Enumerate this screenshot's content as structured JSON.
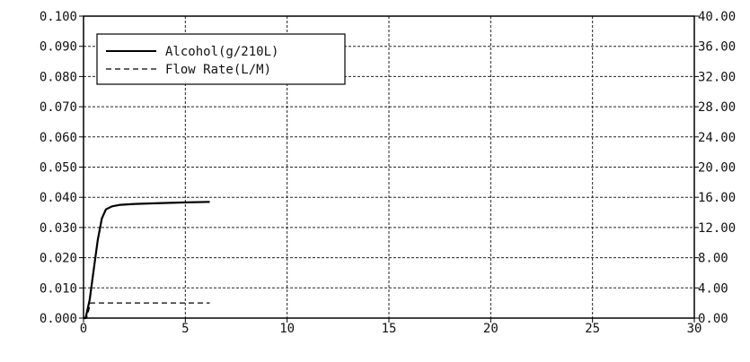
{
  "chart_data": {
    "type": "line",
    "title": "",
    "xlabel": "",
    "ylabel": "",
    "y2label": "",
    "grid": true,
    "legend_position": "top-left",
    "xlim": [
      0,
      30
    ],
    "ylim": [
      0,
      0.1
    ],
    "y2lim": [
      0,
      40
    ],
    "x_ticks": [
      "0",
      "5",
      "10",
      "15",
      "20",
      "25",
      "30"
    ],
    "y_ticks": [
      "0.000",
      "0.010",
      "0.020",
      "0.030",
      "0.040",
      "0.050",
      "0.060",
      "0.070",
      "0.080",
      "0.090",
      "0.100"
    ],
    "y2_ticks": [
      "0.00",
      "4.00",
      "8.00",
      "12.00",
      "16.00",
      "20.00",
      "24.00",
      "28.00",
      "32.00",
      "36.00",
      "40.00"
    ],
    "series": [
      {
        "name": "Alcohol(g/210L)",
        "axis": "left",
        "style": "solid",
        "color": "#000000",
        "x": [
          0,
          0.1,
          0.3,
          0.5,
          0.7,
          0.9,
          1.1,
          1.4,
          1.8,
          2.5,
          3.5,
          5,
          6.2
        ],
        "y": [
          0,
          0.0,
          0.006,
          0.016,
          0.026,
          0.033,
          0.036,
          0.037,
          0.0375,
          0.0378,
          0.038,
          0.0383,
          0.0385
        ]
      },
      {
        "name": "Flow Rate(L/M)",
        "axis": "right",
        "style": "dashed",
        "color": "#000000",
        "x": [
          0,
          0.15,
          0.35,
          0.6,
          6.2
        ],
        "y": [
          0,
          0,
          2.0,
          2.0,
          2.0
        ]
      }
    ]
  }
}
